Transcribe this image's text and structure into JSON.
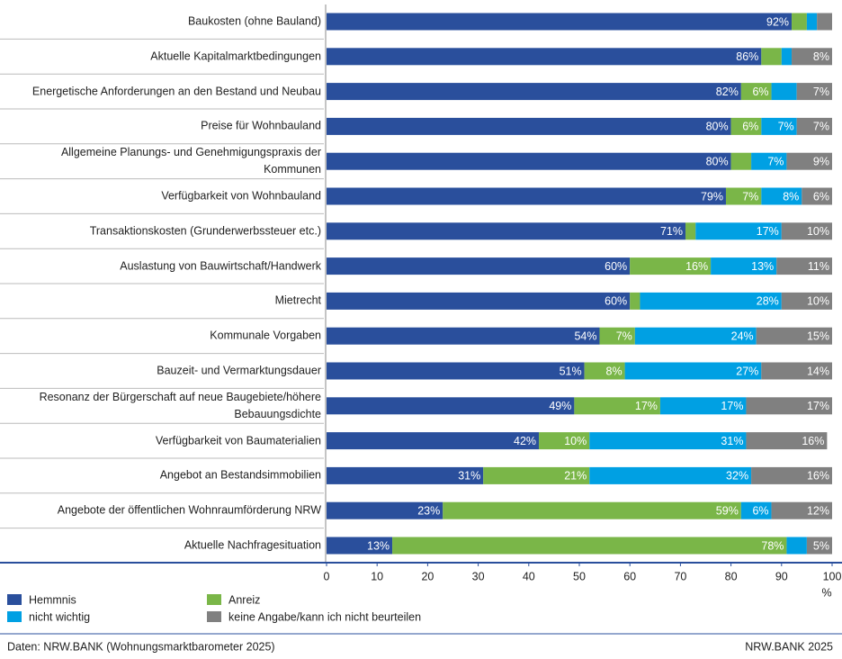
{
  "chart_data": {
    "type": "stacked-barh",
    "categories": [
      "Baukosten (ohne Bauland)",
      "Aktuelle Kapitalmarktbedingungen",
      "Energetische Anforderungen an den Bestand und Neubau",
      "Preise für Wohnbauland",
      "Allgemeine Planungs- und Genehmigungspraxis der Kommunen",
      "Verfügbarkeit von Wohnbauland",
      "Transaktionskosten (Grunderwerbssteuer etc.)",
      "Auslastung von Bauwirtschaft/Handwerk",
      "Mietrecht",
      "Kommunale Vorgaben",
      "Bauzeit- und Vermarktungsdauer",
      "Resonanz der Bürgerschaft auf neue Baugebiete/höhere Bebauungsdichte",
      "Verfügbarkeit von Baumaterialien",
      "Angebot an Bestandsimmobilien",
      "Angebote der öffentlichen Wohnraumförderung NRW",
      "Aktuelle Nachfragesituation"
    ],
    "series": [
      {
        "name": "Hemmnis",
        "color": "#2a4f9c",
        "values": [
          92,
          86,
          82,
          80,
          80,
          79,
          71,
          60,
          60,
          54,
          51,
          49,
          42,
          31,
          23,
          13
        ],
        "value_labels": [
          "92%",
          "86%",
          "82%",
          "80%",
          "80%",
          "79%",
          "71%",
          "60%",
          "60%",
          "54%",
          "51%",
          "49%",
          "42%",
          "31%",
          "23%",
          "13%"
        ]
      },
      {
        "name": "Anreiz",
        "color": "#7ab648",
        "values": [
          3,
          4,
          6,
          6,
          4,
          7,
          2,
          16,
          2,
          7,
          8,
          17,
          10,
          21,
          59,
          78
        ],
        "value_labels": [
          null,
          null,
          "6%",
          "6%",
          null,
          "7%",
          null,
          "16%",
          null,
          "7%",
          "8%",
          "17%",
          "10%",
          "21%",
          "59%",
          "78%"
        ]
      },
      {
        "name": "nicht wichtig",
        "color": "#00a0e3",
        "values": [
          2,
          2,
          5,
          7,
          7,
          8,
          17,
          13,
          28,
          24,
          27,
          17,
          31,
          32,
          6,
          4
        ],
        "value_labels": [
          null,
          null,
          null,
          "7%",
          "7%",
          "8%",
          "17%",
          "13%",
          "28%",
          "24%",
          "27%",
          "17%",
          "31%",
          "32%",
          "6%",
          null
        ]
      },
      {
        "name": "keine Angabe/kann ich nicht beurteilen",
        "color": "#808080",
        "values": [
          3,
          8,
          7,
          7,
          9,
          6,
          10,
          11,
          10,
          15,
          14,
          17,
          16,
          16,
          12,
          5
        ],
        "value_labels": [
          null,
          "8%",
          "7%",
          "7%",
          "9%",
          "6%",
          "10%",
          "11%",
          "10%",
          "15%",
          "14%",
          "17%",
          "16%",
          "16%",
          "12%",
          "5%"
        ]
      }
    ],
    "xlim": [
      0,
      100
    ],
    "xticks": [
      0,
      10,
      20,
      30,
      40,
      50,
      60,
      70,
      80,
      90,
      100
    ],
    "xlabel": "%",
    "source": "Daten: NRW.BANK (Wohnungsmarktbarometer 2025)",
    "credit": "NRW.BANK 2025"
  }
}
